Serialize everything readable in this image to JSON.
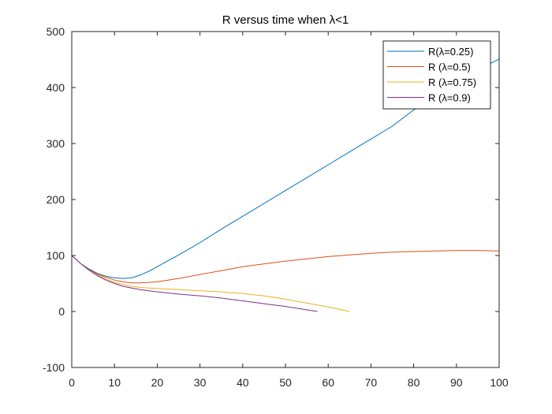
{
  "chart_data": {
    "type": "line",
    "title": "R versus time when λ<1",
    "xlabel": "",
    "ylabel": "",
    "xlim": [
      0,
      100
    ],
    "ylim": [
      -100,
      500
    ],
    "xticks": [
      0,
      10,
      20,
      30,
      40,
      50,
      60,
      70,
      80,
      90,
      100
    ],
    "yticks": [
      -100,
      0,
      100,
      200,
      300,
      400,
      500
    ],
    "grid": false,
    "legend_position": "top-right",
    "series": [
      {
        "name": "R(λ=0.25)",
        "color": "#0072BD",
        "x": [
          0,
          2,
          4,
          6,
          8,
          10,
          12,
          14,
          16,
          18,
          20,
          25,
          30,
          35,
          40,
          45,
          50,
          55,
          60,
          65,
          70,
          75,
          80,
          85,
          90,
          95,
          100
        ],
        "y": [
          100,
          86,
          76,
          68,
          63,
          60,
          59,
          60,
          65,
          72,
          80,
          101,
          123,
          147,
          170,
          193,
          216,
          239,
          262,
          285,
          308,
          331,
          360,
          385,
          410,
          432,
          451
        ]
      },
      {
        "name": "R (λ=0.5)",
        "color": "#D95319",
        "x": [
          0,
          2,
          4,
          6,
          8,
          10,
          12,
          14,
          16,
          18,
          20,
          25,
          30,
          35,
          40,
          45,
          50,
          55,
          60,
          65,
          70,
          75,
          80,
          85,
          90,
          95,
          100
        ],
        "y": [
          100,
          86,
          75,
          67,
          61,
          56,
          53,
          51,
          51,
          52,
          53,
          59,
          66,
          73,
          80,
          85,
          90,
          94,
          98,
          101,
          104,
          106,
          107,
          108,
          109,
          109,
          108
        ]
      },
      {
        "name": "R (λ=0.75)",
        "color": "#EDB120",
        "x": [
          0,
          2,
          4,
          6,
          8,
          10,
          12,
          14,
          16,
          18,
          20,
          25,
          30,
          35,
          40,
          45,
          50,
          55,
          60,
          65
        ],
        "y": [
          100,
          86,
          74,
          65,
          58,
          52,
          48,
          45,
          43,
          42,
          41,
          39,
          37,
          35,
          32,
          28,
          22,
          15,
          8,
          0
        ]
      },
      {
        "name": "R (λ=0.9)",
        "color": "#7E2F8E",
        "x": [
          0,
          2,
          4,
          6,
          8,
          10,
          12,
          14,
          16,
          18,
          20,
          25,
          30,
          35,
          40,
          45,
          50,
          55,
          57.5
        ],
        "y": [
          100,
          86,
          74,
          64,
          56,
          50,
          45,
          42,
          39,
          37,
          35,
          31,
          28,
          24,
          19,
          14,
          9,
          3,
          0
        ]
      }
    ]
  }
}
